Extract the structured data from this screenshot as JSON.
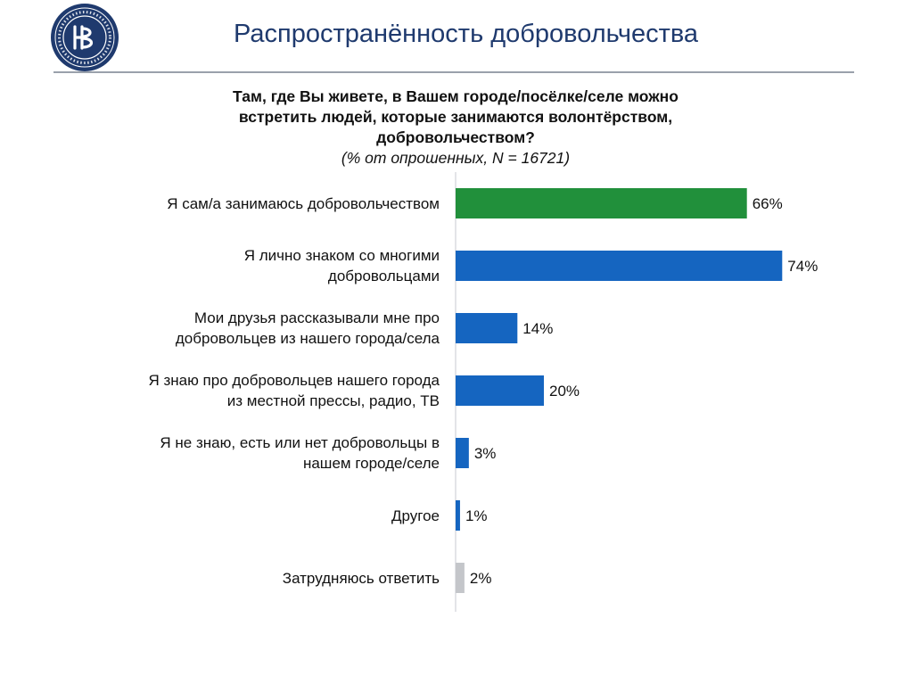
{
  "header": {
    "title": "Распространённость добровольчества",
    "logo_icon": "hse-university-seal-icon"
  },
  "chart_data": {
    "type": "bar",
    "orientation": "horizontal",
    "title": "Там, где Вы живете, в Вашем городе/посёлке/селе можно встретить людей, которые занимаются волонтёрством, добровольчеством?",
    "subtitle": "(% от опрошенных, N = 16721)",
    "unit": "%",
    "xlim": [
      0,
      100
    ],
    "grid": false,
    "categories": [
      "Я сам/а занимаюсь добровольчеством",
      "Я лично знаком со многими добровольцами",
      "Мои друзья рассказывали мне про добровольцев из нашего города/села",
      "Я знаю про добровольцев нашего города из местной прессы, радио, ТВ",
      "Я не знаю, есть или нет добровольцы в нашем городе/селе",
      "Другое",
      "Затрудняюсь ответить"
    ],
    "category_lines": [
      [
        "Я сам/а занимаюсь добровольчеством"
      ],
      [
        "Я лично знаком со многими",
        "добровольцами"
      ],
      [
        "Мои друзья рассказывали мне про",
        "добровольцев из нашего города/села"
      ],
      [
        "Я знаю про добровольцев нашего города",
        "из местной прессы, радио, ТВ"
      ],
      [
        "Я не знаю, есть или нет добровольцы в",
        "нашем городе/селе"
      ],
      [
        "Другое"
      ],
      [
        "Затрудняюсь ответить"
      ]
    ],
    "values": [
      66,
      74,
      14,
      20,
      3,
      1,
      2
    ],
    "value_labels": [
      "66%",
      "74%",
      "14%",
      "20%",
      "3%",
      "1%",
      "2%"
    ],
    "bar_colors": [
      "#21903b",
      "#1565c0",
      "#1565c0",
      "#1565c0",
      "#1565c0",
      "#1565c0",
      "#c4c6ca"
    ]
  }
}
